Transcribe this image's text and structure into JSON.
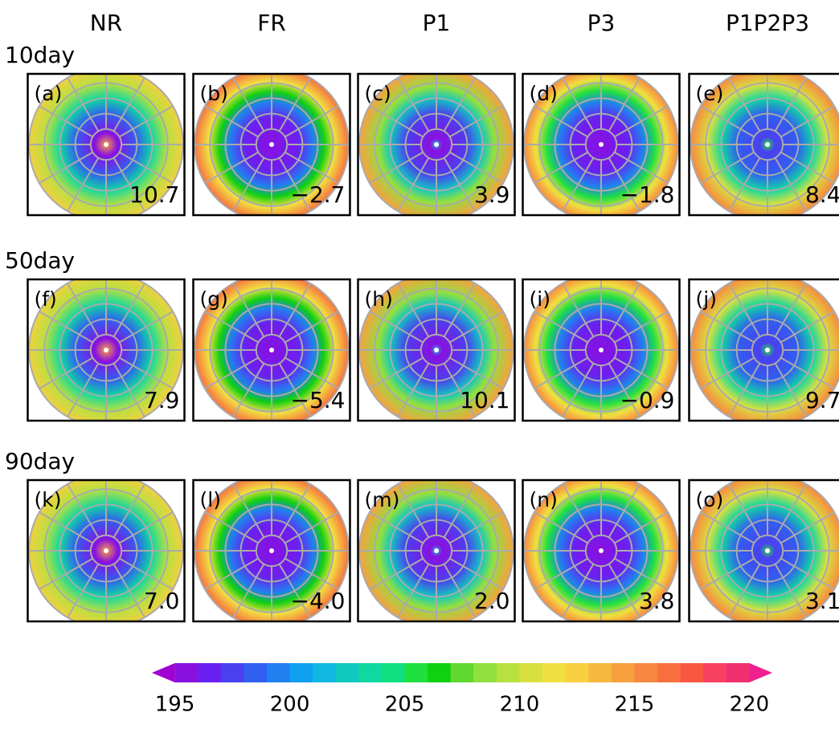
{
  "columns": [
    "NR",
    "FR",
    "P1",
    "P3",
    "P1P2P3"
  ],
  "rows": [
    {
      "label": "10day",
      "panels": [
        {
          "label": "(a)",
          "value": "10.7"
        },
        {
          "label": "(b)",
          "value": "−2.7"
        },
        {
          "label": "(c)",
          "value": "3.9"
        },
        {
          "label": "(d)",
          "value": "−1.8"
        },
        {
          "label": "(e)",
          "value": "8.4"
        }
      ]
    },
    {
      "label": "50day",
      "panels": [
        {
          "label": "(f)",
          "value": "7.9"
        },
        {
          "label": "(g)",
          "value": "−5.4"
        },
        {
          "label": "(h)",
          "value": "10.1"
        },
        {
          "label": "(i)",
          "value": "−0.9"
        },
        {
          "label": "(j)",
          "value": "9.7"
        }
      ]
    },
    {
      "label": "90day",
      "panels": [
        {
          "label": "(k)",
          "value": "7.0"
        },
        {
          "label": "(l)",
          "value": "−4.0"
        },
        {
          "label": "(m)",
          "value": "2.0"
        },
        {
          "label": "(n)",
          "value": "3.8"
        },
        {
          "label": "(o)",
          "value": "3.1"
        }
      ]
    }
  ],
  "colorbar": {
    "lim": [
      194,
      221
    ],
    "ticks": [
      195,
      200,
      205,
      210,
      215,
      220
    ],
    "colors": [
      "#a000d0",
      "#8a10e0",
      "#6a20f0",
      "#4a40f0",
      "#3060f0",
      "#2080f0",
      "#10a0f0",
      "#10b8e0",
      "#10c8c0",
      "#10d8a0",
      "#10e080",
      "#20e040",
      "#10d010",
      "#60d830",
      "#90e040",
      "#b8e040",
      "#d8e040",
      "#f0e040",
      "#f8d040",
      "#f8b840",
      "#f8a040",
      "#f88840",
      "#f87040",
      "#f85840",
      "#f84060",
      "#f03070",
      "#f02090"
    ]
  }
}
